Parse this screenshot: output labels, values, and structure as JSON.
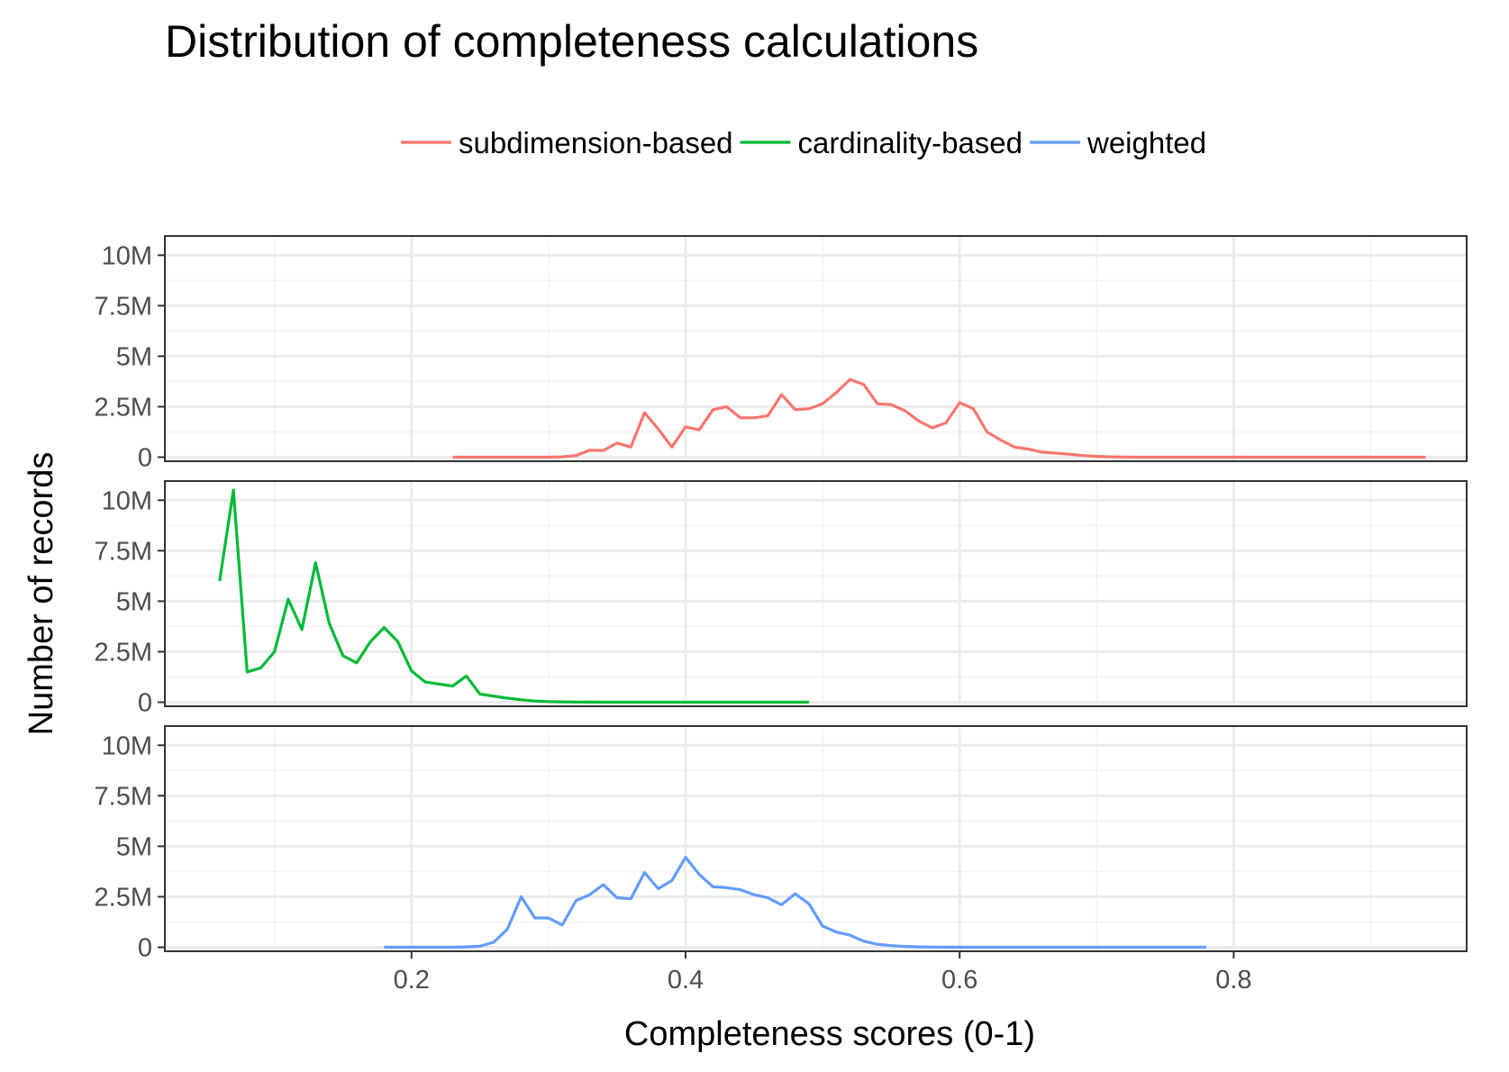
{
  "chart_data": {
    "type": "line",
    "title": "Distribution of completeness calculations",
    "xlabel": "Completeness scores (0-1)",
    "ylabel": "Number of records",
    "xlim": [
      0.02,
      0.97
    ],
    "ylim": [
      -200000,
      10950000
    ],
    "x_ticks": [
      0.2,
      0.4,
      0.6,
      0.8
    ],
    "x_tick_labels": [
      "0.2",
      "0.4",
      "0.6",
      "0.8"
    ],
    "y_ticks": [
      0,
      2500000,
      5000000,
      7500000,
      10000000
    ],
    "y_tick_labels": [
      "0",
      "2.5M",
      "5M",
      "7.5M",
      "10M"
    ],
    "grid": true,
    "legend_position": "top",
    "facets": "rows",
    "series": [
      {
        "name": "subdimension-based",
        "color": "#F8766D",
        "x": [
          0.23,
          0.24,
          0.25,
          0.26,
          0.27,
          0.28,
          0.29,
          0.3,
          0.31,
          0.32,
          0.33,
          0.34,
          0.35,
          0.36,
          0.37,
          0.38,
          0.39,
          0.4,
          0.41,
          0.42,
          0.43,
          0.44,
          0.45,
          0.46,
          0.47,
          0.48,
          0.49,
          0.5,
          0.51,
          0.52,
          0.53,
          0.54,
          0.55,
          0.56,
          0.57,
          0.58,
          0.59,
          0.6,
          0.61,
          0.62,
          0.63,
          0.64,
          0.65,
          0.66,
          0.67,
          0.68,
          0.69,
          0.7,
          0.71,
          0.72,
          0.73,
          0.74,
          0.75,
          0.76,
          0.77,
          0.78,
          0.79,
          0.8,
          0.81,
          0.82,
          0.83,
          0.84,
          0.85,
          0.86,
          0.87,
          0.88,
          0.89,
          0.9,
          0.91,
          0.92,
          0.93,
          0.94
        ],
        "y": [
          0,
          0,
          0,
          0,
          0,
          0,
          0,
          0,
          20000,
          80000,
          350000,
          330000,
          700000,
          500000,
          2200000,
          1400000,
          500000,
          1500000,
          1350000,
          2350000,
          2500000,
          1950000,
          1950000,
          2050000,
          3100000,
          2350000,
          2400000,
          2650000,
          3200000,
          3850000,
          3600000,
          2650000,
          2600000,
          2300000,
          1800000,
          1450000,
          1700000,
          2700000,
          2400000,
          1250000,
          850000,
          500000,
          400000,
          250000,
          200000,
          150000,
          80000,
          40000,
          20000,
          10000,
          0,
          0,
          0,
          0,
          0,
          0,
          0,
          0,
          0,
          0,
          0,
          0,
          0,
          0,
          0,
          0,
          0,
          0,
          0,
          0,
          0,
          0
        ]
      },
      {
        "name": "cardinality-based",
        "color": "#00BA38",
        "x": [
          0.06,
          0.07,
          0.08,
          0.09,
          0.1,
          0.11,
          0.12,
          0.13,
          0.14,
          0.15,
          0.16,
          0.17,
          0.18,
          0.19,
          0.2,
          0.21,
          0.22,
          0.23,
          0.24,
          0.25,
          0.26,
          0.27,
          0.28,
          0.29,
          0.3,
          0.31,
          0.32,
          0.33,
          0.34,
          0.35,
          0.36,
          0.37,
          0.38,
          0.39,
          0.4,
          0.41,
          0.42,
          0.43,
          0.44,
          0.45,
          0.46,
          0.47,
          0.48,
          0.49
        ],
        "y": [
          6000000,
          10500000,
          1500000,
          1700000,
          2500000,
          5100000,
          3600000,
          6900000,
          3900000,
          2300000,
          1950000,
          3000000,
          3700000,
          3000000,
          1550000,
          1000000,
          900000,
          800000,
          1300000,
          400000,
          300000,
          200000,
          120000,
          60000,
          30000,
          20000,
          10000,
          5000,
          0,
          0,
          0,
          0,
          0,
          0,
          0,
          0,
          0,
          0,
          0,
          0,
          0,
          0,
          0,
          0
        ]
      },
      {
        "name": "weighted",
        "color": "#619CFF",
        "x": [
          0.18,
          0.19,
          0.2,
          0.21,
          0.22,
          0.23,
          0.24,
          0.25,
          0.26,
          0.27,
          0.28,
          0.29,
          0.3,
          0.31,
          0.32,
          0.33,
          0.34,
          0.35,
          0.36,
          0.37,
          0.38,
          0.39,
          0.4,
          0.41,
          0.42,
          0.43,
          0.44,
          0.45,
          0.46,
          0.47,
          0.48,
          0.49,
          0.5,
          0.51,
          0.52,
          0.53,
          0.54,
          0.55,
          0.56,
          0.57,
          0.58,
          0.59,
          0.6,
          0.61,
          0.62,
          0.63,
          0.64,
          0.65,
          0.66,
          0.67,
          0.68,
          0.69,
          0.7,
          0.71,
          0.72,
          0.73,
          0.74,
          0.75,
          0.76,
          0.77,
          0.78
        ],
        "y": [
          0,
          0,
          0,
          0,
          0,
          0,
          20000,
          50000,
          250000,
          900000,
          2500000,
          1450000,
          1450000,
          1100000,
          2300000,
          2600000,
          3100000,
          2450000,
          2400000,
          3700000,
          2900000,
          3300000,
          4450000,
          3600000,
          3000000,
          2950000,
          2850000,
          2600000,
          2450000,
          2100000,
          2650000,
          2150000,
          1050000,
          750000,
          600000,
          300000,
          150000,
          80000,
          40000,
          20000,
          10000,
          5000,
          0,
          0,
          0,
          0,
          0,
          0,
          0,
          0,
          0,
          0,
          0,
          0,
          0,
          0,
          0,
          0,
          0,
          0,
          0
        ]
      }
    ]
  }
}
